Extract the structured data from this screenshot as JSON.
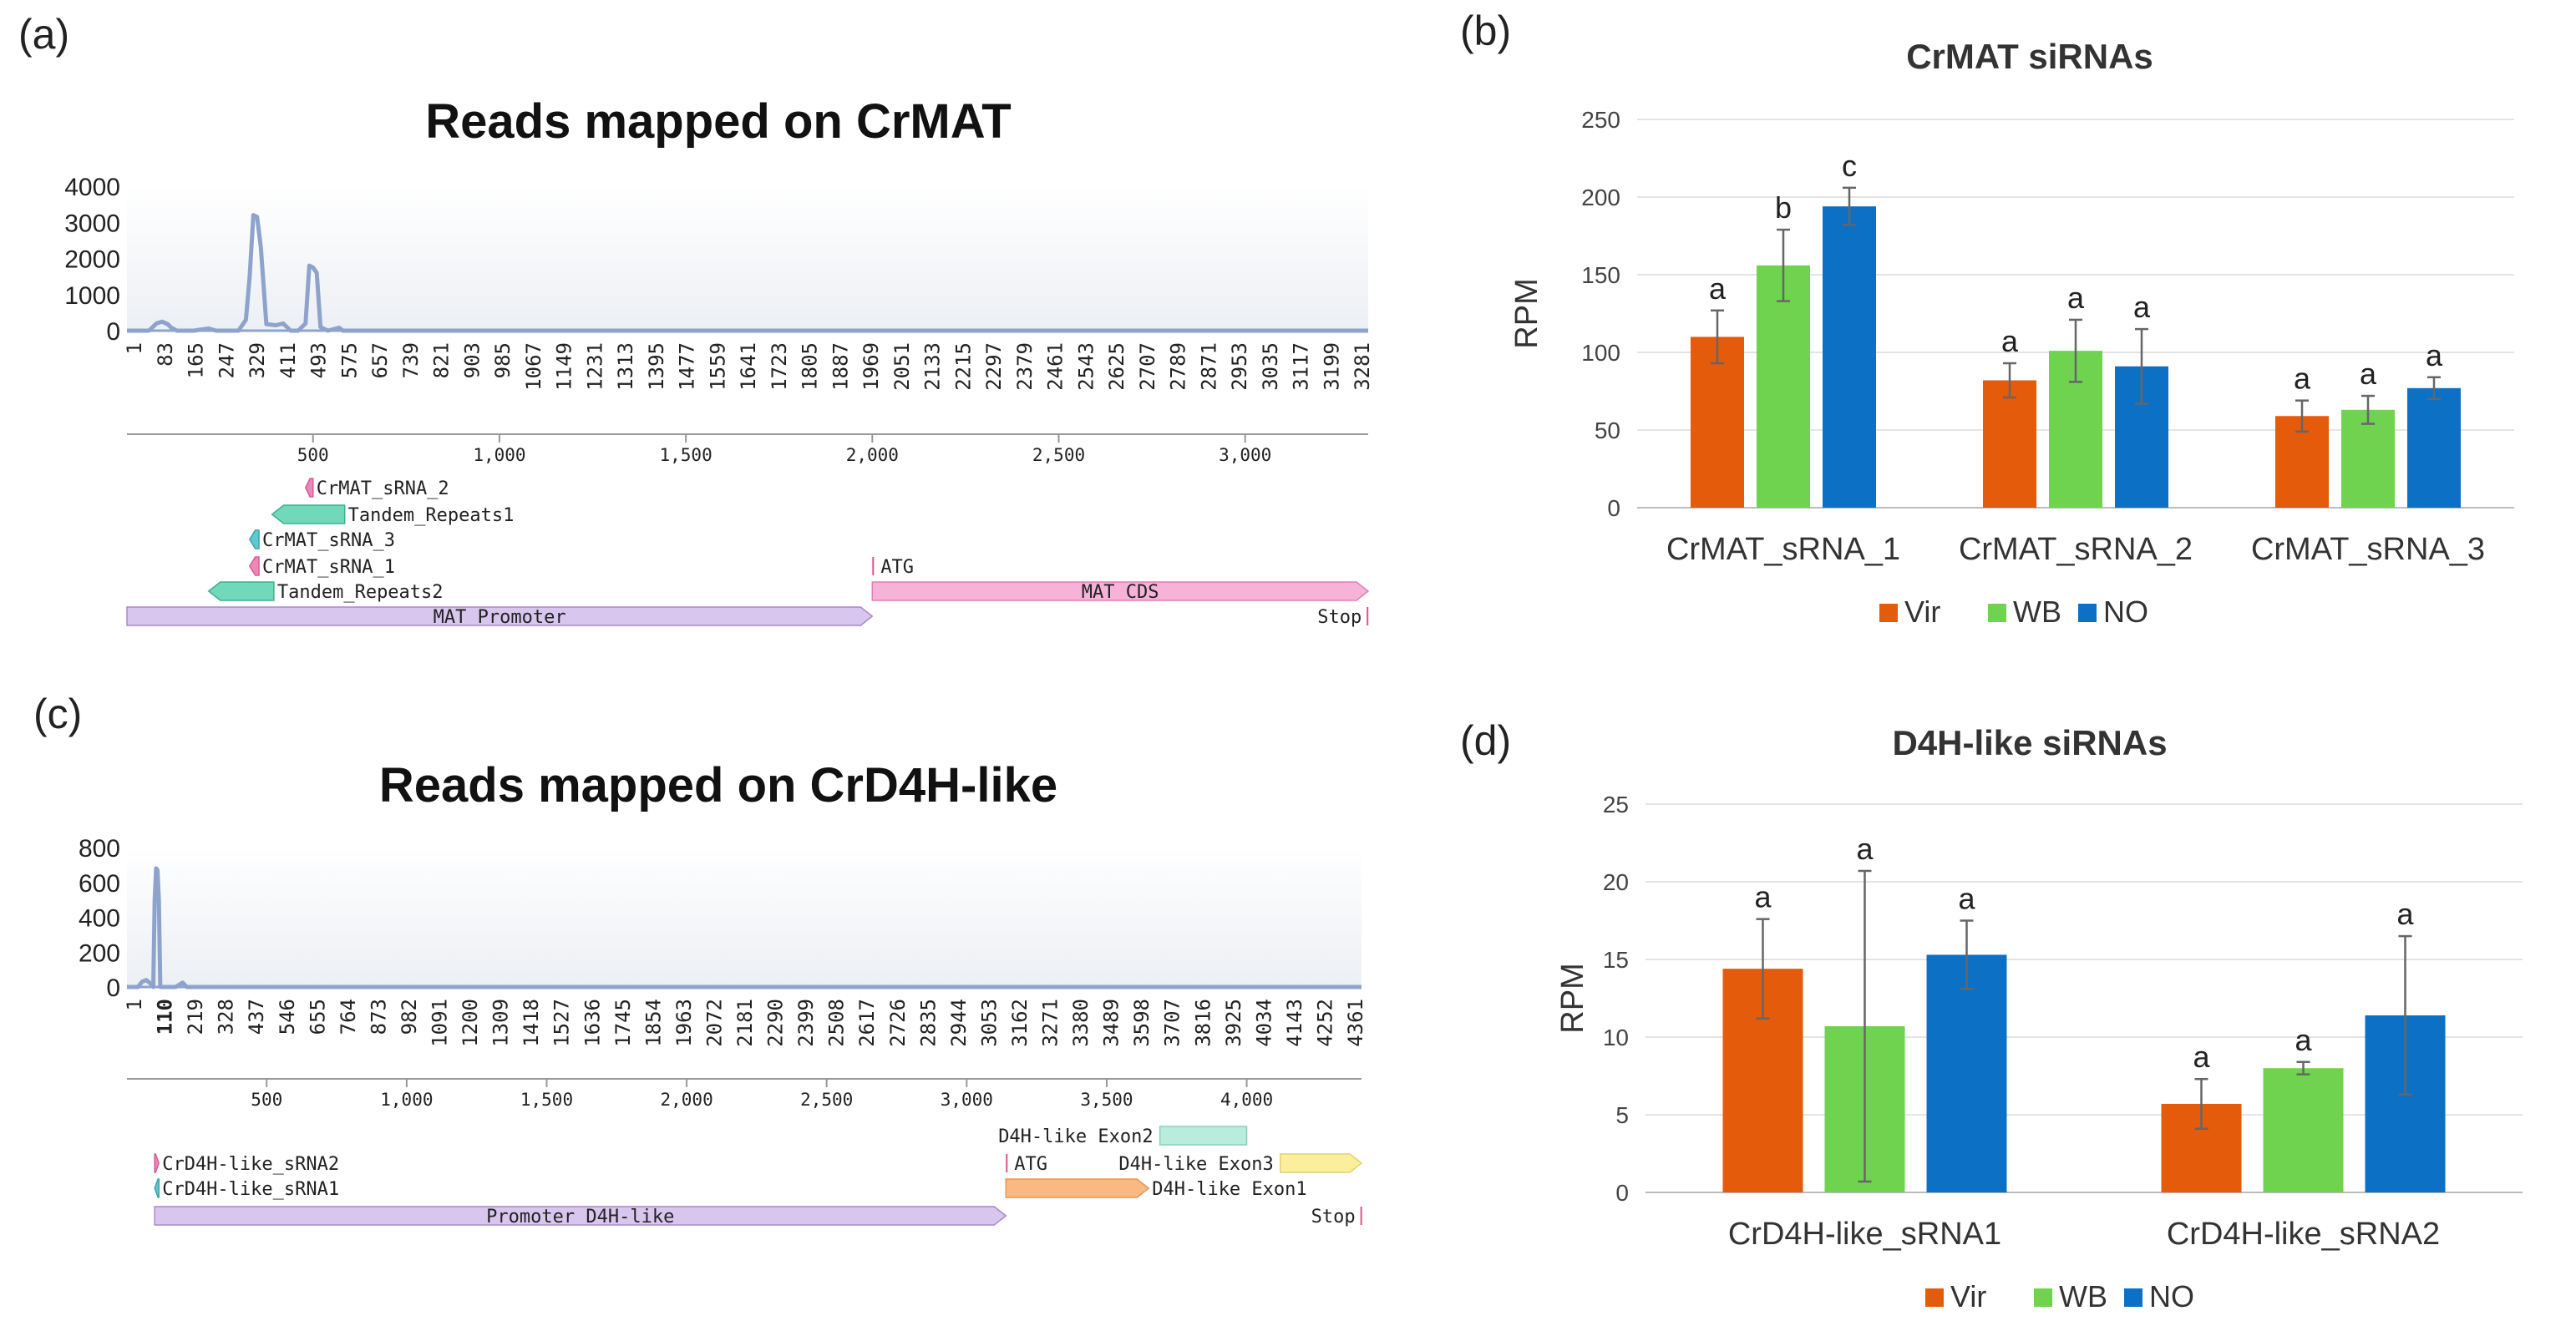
{
  "panels": {
    "a": "(a)",
    "b": "(b)",
    "c": "(c)",
    "d": "(d)"
  },
  "colors": {
    "coverage_line": "#8ea3cc",
    "coverage_bg": "#eceff4",
    "Vir": "#e35b0b",
    "WB": "#6fd34f",
    "NO": "#0c70c4",
    "promoter": "#d8c6ee",
    "cds": "#f7b2d9",
    "repeat": "#72d8ba",
    "srna_pink": "#ee86b8",
    "srna_teal": "#60c9d0",
    "exon1": "#f8b983",
    "exon2": "#b8ecdd",
    "exon3": "#fbee9c"
  },
  "chart_data": [
    {
      "id": "a",
      "type": "area",
      "title": "Reads mapped on CrMAT",
      "y_ticks": [
        "4000",
        "3000",
        "2000",
        "1000",
        "0"
      ],
      "ylim": [
        0,
        4000
      ],
      "xlim": [
        1,
        3330
      ],
      "x_ticks": [
        "1",
        "83",
        "165",
        "247",
        "329",
        "411",
        "493",
        "575",
        "657",
        "739",
        "821",
        "903",
        "985",
        "1067",
        "1149",
        "1231",
        "1313",
        "1395",
        "1477",
        "1559",
        "1641",
        "1723",
        "1805",
        "1887",
        "1969",
        "2051",
        "2133",
        "2215",
        "2297",
        "2379",
        "2461",
        "2543",
        "2625",
        "2707",
        "2789",
        "2871",
        "2953",
        "3035",
        "3117",
        "3199",
        "3281"
      ],
      "ruler_ticks": [
        "500",
        "1,000",
        "1,500",
        "2,000",
        "2,500",
        "3,000"
      ],
      "ruler_values": [
        500,
        1000,
        1500,
        2000,
        2500,
        3000
      ],
      "coverage": {
        "x": [
          1,
          60,
          80,
          95,
          110,
          120,
          135,
          180,
          220,
          240,
          300,
          320,
          330,
          340,
          350,
          360,
          375,
          400,
          420,
          440,
          460,
          480,
          490,
          500,
          510,
          520,
          540,
          570,
          580,
          600,
          700,
          1000,
          2000,
          3330
        ],
        "y": [
          0,
          0,
          200,
          250,
          180,
          80,
          0,
          0,
          60,
          0,
          0,
          300,
          1500,
          3200,
          3150,
          2300,
          180,
          150,
          200,
          0,
          0,
          200,
          1800,
          1750,
          1600,
          100,
          0,
          80,
          0,
          0,
          0,
          0,
          0,
          0
        ]
      },
      "features": [
        {
          "label": "CrMAT_sRNA_2",
          "start": 480,
          "end": 500,
          "row": 0,
          "kind": "srna_pink",
          "dir": "left"
        },
        {
          "label": "Tandem_Repeats1",
          "start": 390,
          "end": 585,
          "row": 1,
          "kind": "repeat",
          "dir": "left"
        },
        {
          "label": "CrMAT_sRNA_3",
          "start": 330,
          "end": 355,
          "row": 2,
          "kind": "srna_teal",
          "dir": "left"
        },
        {
          "label": "CrMAT_sRNA_1",
          "start": 330,
          "end": 355,
          "row": 3,
          "kind": "srna_pink",
          "dir": "left"
        },
        {
          "label": "ATG",
          "start": 2000,
          "end": 2004,
          "row": 3,
          "kind": "marker"
        },
        {
          "label": "Tandem_Repeats2",
          "start": 220,
          "end": 395,
          "row": 4,
          "kind": "repeat",
          "dir": "left"
        },
        {
          "label": "MAT CDS",
          "start": 2000,
          "end": 3330,
          "row": 4,
          "kind": "cds",
          "dir": "right"
        },
        {
          "label": "MAT Promoter",
          "start": 1,
          "end": 2000,
          "row": 5,
          "kind": "promoter",
          "dir": "right"
        },
        {
          "label": "Stop",
          "start": 3326,
          "end": 3330,
          "row": 5,
          "kind": "stop"
        }
      ]
    },
    {
      "id": "b",
      "type": "bar",
      "title": "CrMAT siRNAs",
      "ylabel": "RPM",
      "ylim": [
        0,
        250
      ],
      "y_ticks": [
        0,
        50,
        100,
        150,
        200,
        250
      ],
      "categories": [
        "CrMAT_sRNA_1",
        "CrMAT_sRNA_2",
        "CrMAT_sRNA_3"
      ],
      "series": [
        {
          "name": "Vir",
          "values": [
            110,
            82,
            59
          ],
          "errors": [
            17,
            11,
            10
          ],
          "letters": [
            "a",
            "a",
            "a"
          ]
        },
        {
          "name": "WB",
          "values": [
            156,
            101,
            63
          ],
          "errors": [
            23,
            20,
            9
          ],
          "letters": [
            "b",
            "a",
            "a"
          ]
        },
        {
          "name": "NO",
          "values": [
            194,
            91,
            77
          ],
          "errors": [
            12,
            24,
            7
          ],
          "letters": [
            "c",
            "a",
            "a"
          ]
        }
      ],
      "legend": "bottom"
    },
    {
      "id": "c",
      "type": "area",
      "title": "Reads mapped on CrD4H-like",
      "y_ticks": [
        "800",
        "600",
        "400",
        "200",
        "0"
      ],
      "ylim": [
        0,
        800
      ],
      "xlim": [
        1,
        4410
      ],
      "x_ticks": [
        "1",
        "110",
        "219",
        "328",
        "437",
        "546",
        "655",
        "764",
        "873",
        "982",
        "1091",
        "1200",
        "1309",
        "1418",
        "1527",
        "1636",
        "1745",
        "1854",
        "1963",
        "2072",
        "2181",
        "2290",
        "2399",
        "2508",
        "2617",
        "2726",
        "2835",
        "2944",
        "3053",
        "3162",
        "3271",
        "3380",
        "3489",
        "3598",
        "3707",
        "3816",
        "3925",
        "4034",
        "4143",
        "4252",
        "4361"
      ],
      "bold_tick": "110",
      "ruler_ticks": [
        "500",
        "1,000",
        "1,500",
        "2,000",
        "2,500",
        "3,000",
        "3,500",
        "4,000"
      ],
      "ruler_values": [
        500,
        1000,
        1500,
        2000,
        2500,
        3000,
        3500,
        4000
      ],
      "coverage": {
        "x": [
          1,
          40,
          55,
          70,
          85,
          95,
          100,
          105,
          110,
          115,
          120,
          135,
          175,
          200,
          215,
          230,
          300,
          1000,
          4410
        ],
        "y": [
          0,
          0,
          30,
          40,
          20,
          0,
          500,
          680,
          670,
          500,
          0,
          0,
          0,
          25,
          0,
          0,
          0,
          0,
          0
        ]
      },
      "features": [
        {
          "label": "D4H-like Exon2",
          "start": 3690,
          "end": 4000,
          "row": 0,
          "kind": "exon2"
        },
        {
          "label": "CrD4H-like_sRNA2",
          "start": 100,
          "end": 115,
          "row": 1,
          "kind": "srna_pink",
          "dir": "right"
        },
        {
          "label": "ATG",
          "start": 3140,
          "end": 3144,
          "row": 1,
          "kind": "marker"
        },
        {
          "label": "D4H-like Exon3",
          "start": 4120,
          "end": 4410,
          "row": 1,
          "kind": "exon3",
          "dir": "right"
        },
        {
          "label": "CrD4H-like_sRNA1",
          "start": 100,
          "end": 115,
          "row": 2,
          "kind": "srna_teal",
          "dir": "left"
        },
        {
          "label": "D4H-like Exon1",
          "start": 3140,
          "end": 3650,
          "row": 2,
          "kind": "exon1",
          "dir": "right"
        },
        {
          "label": "Promoter D4H-like",
          "start": 100,
          "end": 3140,
          "row": 3,
          "kind": "promoter",
          "dir": "right"
        },
        {
          "label": "Stop",
          "start": 4406,
          "end": 4410,
          "row": 3,
          "kind": "stop"
        }
      ]
    },
    {
      "id": "d",
      "type": "bar",
      "title": "D4H-like siRNAs",
      "ylabel": "RPM",
      "ylim": [
        0,
        25
      ],
      "y_ticks": [
        0,
        5,
        10,
        15,
        20,
        25
      ],
      "categories": [
        "CrD4H-like_sRNA1",
        "CrD4H-like_sRNA2"
      ],
      "series": [
        {
          "name": "Vir",
          "values": [
            14.4,
            5.7
          ],
          "errors": [
            3.2,
            1.6
          ],
          "letters": [
            "a",
            "a"
          ]
        },
        {
          "name": "WB",
          "values": [
            10.7,
            8.0
          ],
          "errors": [
            10.0,
            0.4
          ],
          "letters": [
            "a",
            "a"
          ]
        },
        {
          "name": "NO",
          "values": [
            15.3,
            11.4
          ],
          "errors": [
            2.2,
            5.1
          ],
          "letters": [
            "a",
            "a"
          ]
        }
      ],
      "legend": "bottom"
    }
  ]
}
